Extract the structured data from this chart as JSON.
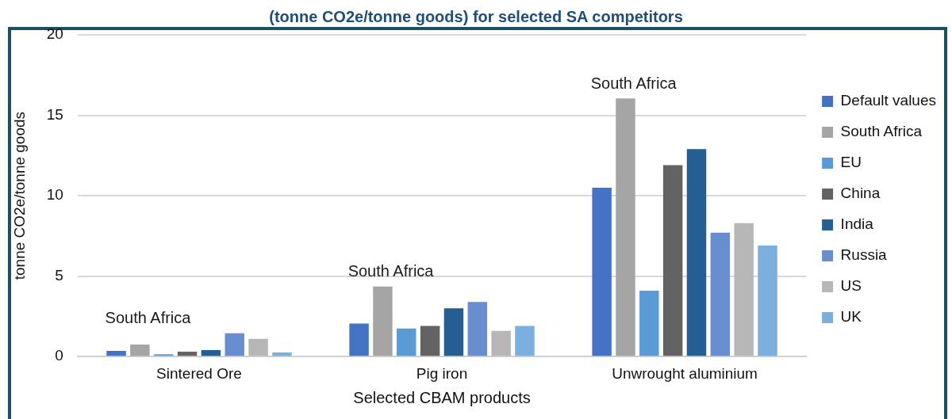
{
  "chart_data": {
    "type": "bar",
    "title": "(tonne CO2e/tonne goods) for selected SA competitors",
    "xlabel": "Selected CBAM products",
    "ylabel": "tonne CO2e/tonne goods",
    "categories": [
      "Sintered Ore",
      "Pig iron",
      "Unwrought aluminium"
    ],
    "series": [
      {
        "name": "Default values",
        "color": "#4472c4",
        "values": [
          0.35,
          2.05,
          10.5
        ]
      },
      {
        "name": "South Africa",
        "color": "#a5a5a5",
        "values": [
          0.75,
          4.35,
          16.05
        ]
      },
      {
        "name": "EU",
        "color": "#5b9bd5",
        "values": [
          0.15,
          1.75,
          4.1
        ]
      },
      {
        "name": "China",
        "color": "#636363",
        "values": [
          0.3,
          1.9,
          11.9
        ]
      },
      {
        "name": "India",
        "color": "#255e91",
        "values": [
          0.4,
          3.0,
          12.9
        ]
      },
      {
        "name": "Russia",
        "color": "#698ed0",
        "values": [
          1.45,
          3.4,
          7.7
        ]
      },
      {
        "name": "US",
        "color": "#b7b7b7",
        "values": [
          1.1,
          1.6,
          8.3
        ]
      },
      {
        "name": "UK",
        "color": "#7cafdd",
        "values": [
          0.25,
          1.9,
          6.9
        ]
      }
    ],
    "annotations": [
      "South Africa",
      "South Africa",
      "South Africa"
    ],
    "ylim": [
      0,
      20
    ],
    "yticks": [
      0,
      5,
      10,
      15,
      20
    ],
    "grid": "y",
    "legend": "right"
  }
}
